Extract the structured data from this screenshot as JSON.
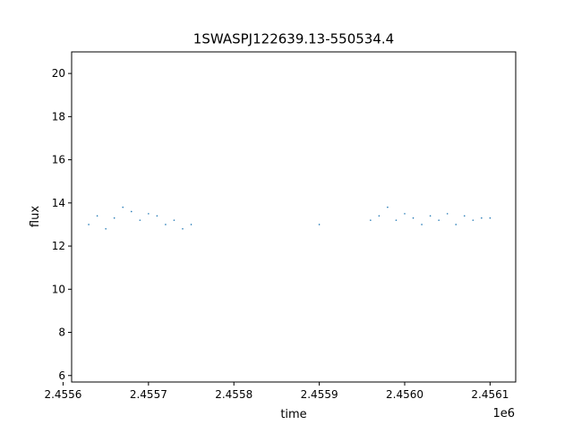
{
  "chart_data": {
    "type": "scatter",
    "title": "1SWASPJ122639.13-550534.4",
    "xlabel": "time",
    "ylabel": "flux",
    "x_offset_label": "1e6",
    "xlim": [
      2.45561,
      2.45613
    ],
    "ylim": [
      5.7,
      21.0
    ],
    "grid": false,
    "marker_color": "#1f77b4",
    "x_ticks": [
      {
        "value": 2.4556,
        "label": "2.4556"
      },
      {
        "value": 2.4557,
        "label": "2.4557"
      },
      {
        "value": 2.4558,
        "label": "2.4558"
      },
      {
        "value": 2.4559,
        "label": "2.4559"
      },
      {
        "value": 2.456,
        "label": "2.4560"
      },
      {
        "value": 2.4561,
        "label": "2.4561"
      }
    ],
    "y_ticks": [
      {
        "value": 6,
        "label": "6"
      },
      {
        "value": 8,
        "label": "8"
      },
      {
        "value": 10,
        "label": "10"
      },
      {
        "value": 12,
        "label": "12"
      },
      {
        "value": 14,
        "label": "14"
      },
      {
        "value": 16,
        "label": "16"
      },
      {
        "value": 18,
        "label": "18"
      },
      {
        "value": 20,
        "label": "20"
      }
    ],
    "series": [
      {
        "x": [
          2.45563,
          2.45564,
          2.45565,
          2.45566,
          2.45567,
          2.45568,
          2.45569,
          2.4557,
          2.45571,
          2.45572,
          2.45573,
          2.45574,
          2.45575,
          2.4559,
          2.45596,
          2.45597,
          2.45598,
          2.45599,
          2.456,
          2.45601,
          2.45602,
          2.45603,
          2.45604,
          2.45605,
          2.45606,
          2.45607,
          2.45608,
          2.45609,
          2.4561
        ],
        "y": [
          13.0,
          13.4,
          12.8,
          13.3,
          13.8,
          13.6,
          13.2,
          13.5,
          13.4,
          13.0,
          13.2,
          12.8,
          13.0,
          13.0,
          13.2,
          13.4,
          13.8,
          13.2,
          13.5,
          13.3,
          13.0,
          13.4,
          13.2,
          13.5,
          13.0,
          13.4,
          13.2,
          13.3,
          13.3
        ]
      }
    ]
  }
}
